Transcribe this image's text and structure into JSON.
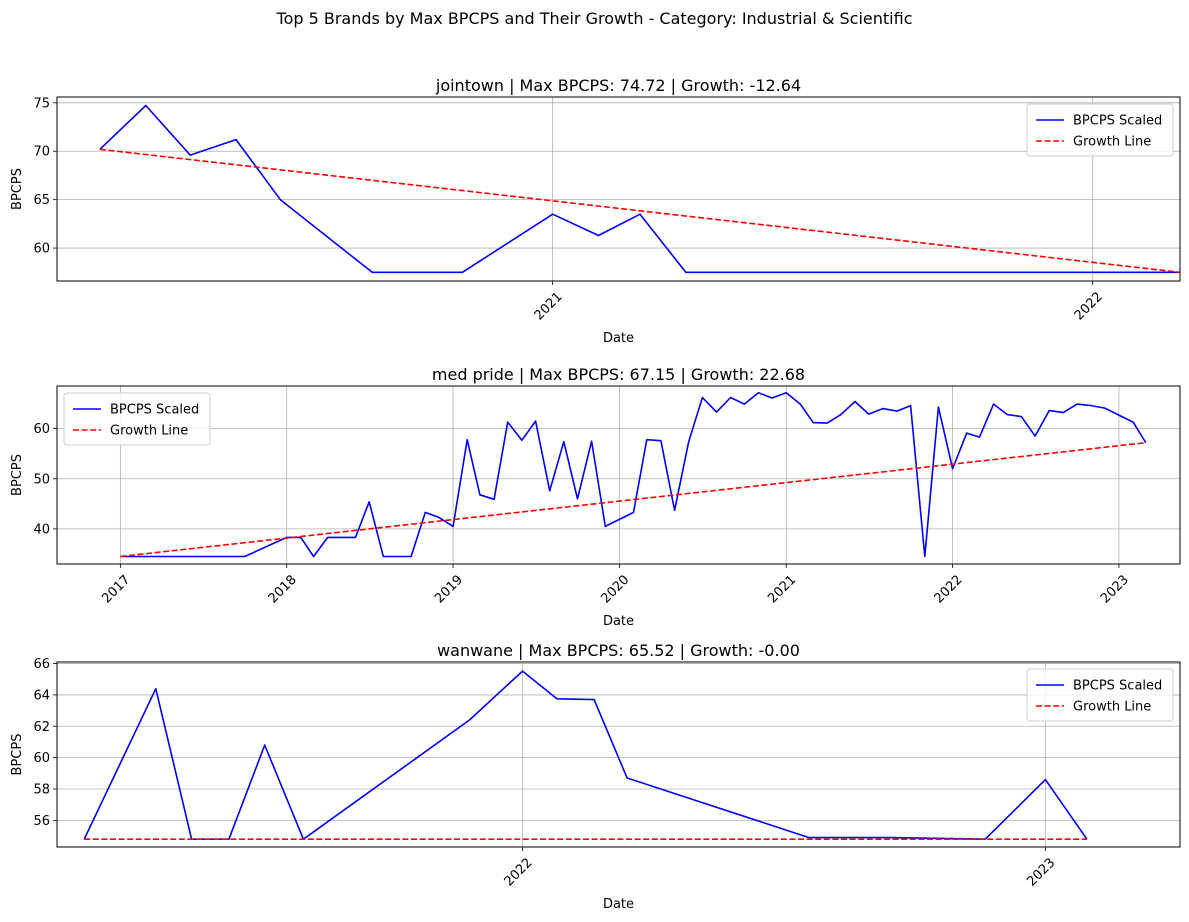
{
  "figure": {
    "suptitle": "Top 5 Brands by Max BPCPS and Their Growth - Category: Industrial & Scientific"
  },
  "chart_data": [
    {
      "type": "line",
      "title": "jointown | Max BPCPS: 74.72 | Growth: -12.64",
      "xlabel": "Date",
      "ylabel": "BPCPS",
      "x_range": [
        "2020-02-01",
        "2022-03-01"
      ],
      "ylim": [
        56.6,
        75.6
      ],
      "yticks": [
        60,
        65,
        70,
        75
      ],
      "xticks": [
        {
          "date": "2021-01-01",
          "label": "2021"
        },
        {
          "date": "2022-01-01",
          "label": "2022"
        }
      ],
      "grid": true,
      "legend": {
        "position": "upper right"
      },
      "series": [
        {
          "name": "BPCPS Scaled",
          "color": "#0000ff",
          "style": "solid",
          "points": [
            [
              "2020-03-01",
              70.2
            ],
            [
              "2020-04-01",
              74.72
            ],
            [
              "2020-05-01",
              69.6
            ],
            [
              "2020-06-01",
              71.2
            ],
            [
              "2020-07-01",
              65.0
            ],
            [
              "2020-09-01",
              57.5
            ],
            [
              "2020-11-01",
              57.5
            ],
            [
              "2021-01-01",
              63.5
            ],
            [
              "2021-02-01",
              61.3
            ],
            [
              "2021-03-01",
              63.5
            ],
            [
              "2021-04-01",
              57.5
            ],
            [
              "2022-03-01",
              57.5
            ]
          ]
        },
        {
          "name": "Growth Line",
          "color": "#ff0000",
          "style": "dashed",
          "points": [
            [
              "2020-03-01",
              70.2
            ],
            [
              "2022-03-01",
              57.5
            ]
          ]
        }
      ]
    },
    {
      "type": "line",
      "title": "med pride | Max BPCPS: 67.15 | Growth: 22.68",
      "xlabel": "Date",
      "ylabel": "BPCPS",
      "x_range": [
        "2016-08-15",
        "2023-05-15"
      ],
      "ylim": [
        33.0,
        68.5
      ],
      "yticks": [
        40,
        50,
        60
      ],
      "xticks": [
        {
          "date": "2017-01-01",
          "label": "2017"
        },
        {
          "date": "2018-01-01",
          "label": "2018"
        },
        {
          "date": "2019-01-01",
          "label": "2019"
        },
        {
          "date": "2020-01-01",
          "label": "2020"
        },
        {
          "date": "2021-01-01",
          "label": "2021"
        },
        {
          "date": "2022-01-01",
          "label": "2022"
        },
        {
          "date": "2023-01-01",
          "label": "2023"
        }
      ],
      "grid": true,
      "legend": {
        "position": "upper left"
      },
      "series": [
        {
          "name": "BPCPS Scaled",
          "color": "#0000ff",
          "style": "solid",
          "points": [
            [
              "2017-01-01",
              34.5
            ],
            [
              "2017-10-01",
              34.5
            ],
            [
              "2018-01-01",
              38.3
            ],
            [
              "2018-02-01",
              38.3
            ],
            [
              "2018-03-01",
              34.5
            ],
            [
              "2018-04-01",
              38.3
            ],
            [
              "2018-06-01",
              38.3
            ],
            [
              "2018-07-01",
              45.4
            ],
            [
              "2018-08-01",
              34.5
            ],
            [
              "2018-10-01",
              34.5
            ],
            [
              "2018-11-01",
              43.3
            ],
            [
              "2018-12-01",
              42.3
            ],
            [
              "2019-01-01",
              40.5
            ],
            [
              "2019-02-01",
              57.8
            ],
            [
              "2019-03-01",
              46.8
            ],
            [
              "2019-04-01",
              45.9
            ],
            [
              "2019-05-01",
              61.3
            ],
            [
              "2019-06-01",
              57.7
            ],
            [
              "2019-07-01",
              61.5
            ],
            [
              "2019-08-01",
              47.6
            ],
            [
              "2019-09-01",
              57.4
            ],
            [
              "2019-10-01",
              46.0
            ],
            [
              "2019-11-01",
              57.5
            ],
            [
              "2019-12-01",
              40.5
            ],
            [
              "2020-02-01",
              43.3
            ],
            [
              "2020-03-01",
              57.8
            ],
            [
              "2020-04-01",
              57.6
            ],
            [
              "2020-05-01",
              43.7
            ],
            [
              "2020-06-01",
              57.4
            ],
            [
              "2020-07-01",
              66.2
            ],
            [
              "2020-08-01",
              63.3
            ],
            [
              "2020-09-01",
              66.2
            ],
            [
              "2020-10-01",
              64.9
            ],
            [
              "2020-11-01",
              67.15
            ],
            [
              "2020-12-01",
              66.1
            ],
            [
              "2021-01-01",
              67.15
            ],
            [
              "2021-02-01",
              64.9
            ],
            [
              "2021-03-01",
              61.2
            ],
            [
              "2021-04-01",
              61.1
            ],
            [
              "2021-05-01",
              62.8
            ],
            [
              "2021-06-01",
              65.4
            ],
            [
              "2021-07-01",
              62.9
            ],
            [
              "2021-08-01",
              64.0
            ],
            [
              "2021-09-01",
              63.5
            ],
            [
              "2021-10-01",
              64.6
            ],
            [
              "2021-11-01",
              34.5
            ],
            [
              "2021-12-01",
              64.3
            ],
            [
              "2022-01-01",
              52.0
            ],
            [
              "2022-02-01",
              59.1
            ],
            [
              "2022-03-01",
              58.3
            ],
            [
              "2022-04-01",
              64.9
            ],
            [
              "2022-05-01",
              62.8
            ],
            [
              "2022-06-01",
              62.4
            ],
            [
              "2022-07-01",
              58.5
            ],
            [
              "2022-08-01",
              63.6
            ],
            [
              "2022-09-01",
              63.2
            ],
            [
              "2022-10-01",
              64.9
            ],
            [
              "2022-11-01",
              64.6
            ],
            [
              "2022-12-01",
              64.1
            ],
            [
              "2023-02-01",
              61.3
            ],
            [
              "2023-03-01",
              57.2
            ]
          ]
        },
        {
          "name": "Growth Line",
          "color": "#ff0000",
          "style": "dashed",
          "points": [
            [
              "2017-01-01",
              34.5
            ],
            [
              "2023-03-01",
              57.2
            ]
          ]
        }
      ]
    },
    {
      "type": "line",
      "title": "wanwane | Max BPCPS: 65.52 | Growth: -0.00",
      "xlabel": "Date",
      "ylabel": "BPCPS",
      "x_range": [
        "2021-02-10",
        "2023-04-05"
      ],
      "ylim": [
        54.3,
        66.1
      ],
      "yticks": [
        56,
        58,
        60,
        62,
        64,
        66
      ],
      "xticks": [
        {
          "date": "2022-01-01",
          "label": "2022"
        },
        {
          "date": "2023-01-01",
          "label": "2023"
        }
      ],
      "grid": true,
      "legend": {
        "position": "upper right"
      },
      "series": [
        {
          "name": "BPCPS Scaled",
          "color": "#0000ff",
          "style": "solid",
          "points": [
            [
              "2021-03-01",
              54.8
            ],
            [
              "2021-04-20",
              64.4
            ],
            [
              "2021-05-15",
              54.8
            ],
            [
              "2021-06-10",
              54.8
            ],
            [
              "2021-07-05",
              60.8
            ],
            [
              "2021-08-01",
              54.8
            ],
            [
              "2021-11-25",
              62.4
            ],
            [
              "2022-01-01",
              65.52
            ],
            [
              "2022-01-25",
              63.75
            ],
            [
              "2022-02-20",
              63.7
            ],
            [
              "2022-03-15",
              58.7
            ],
            [
              "2022-07-20",
              54.9
            ],
            [
              "2022-09-15",
              54.9
            ],
            [
              "2022-11-20",
              54.8
            ],
            [
              "2023-01-01",
              58.6
            ],
            [
              "2023-01-30",
              54.8
            ]
          ]
        },
        {
          "name": "Growth Line",
          "color": "#ff0000",
          "style": "dashed",
          "points": [
            [
              "2021-03-01",
              54.8
            ],
            [
              "2023-01-30",
              54.8
            ]
          ]
        }
      ]
    }
  ]
}
